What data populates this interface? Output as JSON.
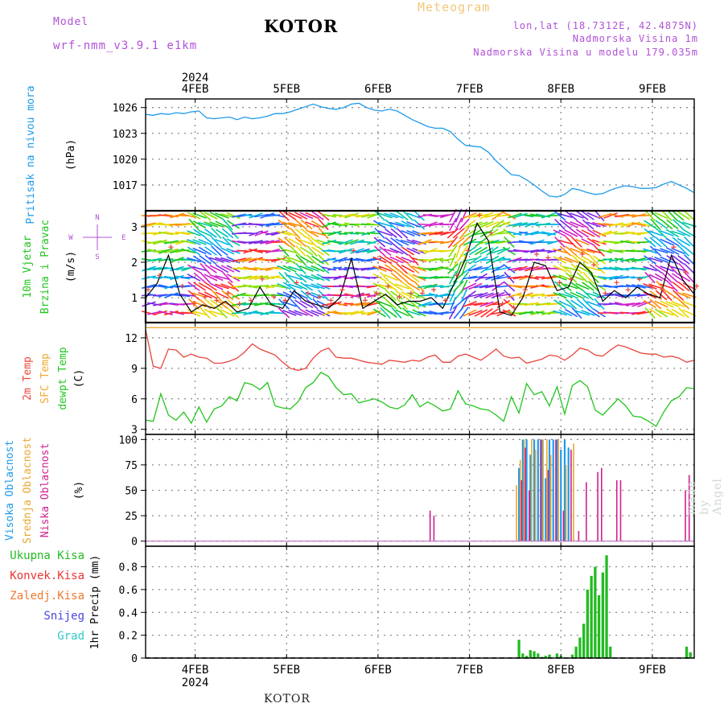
{
  "header": {
    "model_label": "Model",
    "model_name": "wrf-nmm_v3.9.1 e1km",
    "title": "KOTOR",
    "product": "Meteogram",
    "lonlat": "lon,lat (18.7312E, 42.4875N)",
    "elevation": "Nadmorska Visina 1m",
    "model_elevation": "Nadmorska Visina u modelu 179.035m",
    "footer": "KOTOR",
    "credit": "made by Angel"
  },
  "colors": {
    "pressure": "#1e9bea",
    "temp2m": "#e8443a",
    "sfc": "#f0a830",
    "dewpoint": "#22c51e",
    "high_cloud": "#1e9bea",
    "mid_cloud": "#e8a830",
    "low_cloud": "#d02090",
    "precip": "#22bb22",
    "wind_black": "#000000",
    "wind_cross": "#e8443a"
  },
  "chart_data": [
    {
      "type": "line",
      "title": "Pritisak na nivou mora",
      "ylabel": "(hPa)",
      "ylim": [
        1014,
        1027
      ],
      "yticks": [
        1017,
        1020,
        1023,
        1026
      ],
      "top_year_label": "2024",
      "top_day_labels": [
        "4FEB",
        "5FEB",
        "6FEB",
        "7FEB",
        "8FEB",
        "9FEB"
      ],
      "series": [
        {
          "name": "Pritisak na nivou mora",
          "x": [
            0,
            2,
            4,
            6,
            8,
            10,
            12,
            14,
            16,
            18,
            20,
            22,
            24,
            26,
            28,
            30,
            32,
            34,
            36,
            38,
            40,
            42,
            44,
            46,
            48,
            50,
            52,
            54,
            56,
            58,
            60,
            62,
            64,
            66,
            68,
            70,
            72,
            74,
            76,
            78,
            80,
            82,
            84,
            86,
            88,
            90,
            92,
            94,
            96,
            98,
            100,
            102,
            104,
            106,
            108,
            110,
            112,
            114,
            116,
            118,
            120,
            122,
            124,
            126,
            128,
            130,
            132,
            134,
            136,
            138,
            140,
            142,
            144
          ],
          "values": [
            1025.2,
            1025.1,
            1025.3,
            1025.2,
            1025.4,
            1025.3,
            1025.5,
            1025.6,
            1024.8,
            1024.7,
            1024.8,
            1024.9,
            1024.6,
            1024.9,
            1024.7,
            1024.8,
            1025.0,
            1025.3,
            1025.3,
            1025.5,
            1025.8,
            1026.1,
            1026.4,
            1026.1,
            1025.9,
            1025.8,
            1026.0,
            1026.4,
            1026.5,
            1026.0,
            1025.7,
            1025.6,
            1025.8,
            1025.6,
            1025.1,
            1024.6,
            1024.2,
            1023.8,
            1023.6,
            1023.6,
            1023.2,
            1022.3,
            1021.6,
            1021.5,
            1021.4,
            1020.8,
            1019.8,
            1019.0,
            1018.2,
            1018.1,
            1017.6,
            1017.0,
            1016.3,
            1015.7,
            1015.6,
            1015.9,
            1016.6,
            1016.4,
            1016.1,
            1015.9,
            1016.0,
            1016.4,
            1016.7,
            1016.9,
            1016.8,
            1016.6,
            1016.6,
            1016.7,
            1017.1,
            1017.4,
            1017.0,
            1016.6,
            1016.1
          ]
        }
      ]
    },
    {
      "type": "line",
      "title": "10m Vjetar Brzina i Pravac",
      "ylabel": "(m/s)",
      "compass": [
        "N",
        "W",
        "E",
        "S"
      ],
      "ylim": [
        0.3,
        3.45
      ],
      "yticks": [
        1,
        2,
        3
      ],
      "series": [
        {
          "name": "10m Vjetar Brzina i Pravac",
          "x": [
            0,
            3,
            6,
            9,
            12,
            15,
            18,
            21,
            24,
            27,
            30,
            33,
            36,
            39,
            42,
            45,
            48,
            51,
            54,
            57,
            60,
            63,
            66,
            69,
            72,
            75,
            78,
            81,
            84,
            87,
            90,
            93,
            96,
            99,
            102,
            105,
            108,
            111,
            114,
            117,
            120,
            123,
            126,
            129,
            132,
            135,
            138,
            141,
            144
          ],
          "values": [
            1.0,
            1.4,
            2.2,
            1.1,
            0.6,
            0.8,
            0.7,
            0.9,
            0.6,
            0.7,
            1.3,
            0.8,
            0.7,
            1.2,
            0.9,
            0.8,
            0.7,
            1.0,
            2.1,
            0.7,
            0.9,
            1.1,
            0.8,
            0.9,
            0.9,
            1.0,
            0.7,
            1.4,
            2.1,
            3.1,
            2.6,
            0.6,
            0.5,
            1.0,
            2.0,
            1.9,
            1.2,
            1.3,
            2.0,
            1.7,
            0.9,
            1.2,
            1.0,
            1.3,
            1.1,
            1.0,
            2.2,
            1.5,
            1.1
          ]
        }
      ]
    },
    {
      "type": "line",
      "ylabel": "(C)",
      "ylim": [
        2.5,
        13.5
      ],
      "yticks": [
        3,
        6,
        9,
        12
      ],
      "series": [
        {
          "name": "2m Temp",
          "x": [
            0,
            2,
            4,
            6,
            8,
            10,
            12,
            14,
            16,
            18,
            20,
            22,
            24,
            26,
            28,
            30,
            32,
            34,
            36,
            38,
            40,
            42,
            44,
            46,
            48,
            50,
            52,
            54,
            56,
            58,
            60,
            62,
            64,
            66,
            68,
            70,
            72,
            74,
            76,
            78,
            80,
            82,
            84,
            86,
            88,
            90,
            92,
            94,
            96,
            98,
            100,
            102,
            104,
            106,
            108,
            110,
            112,
            114,
            116,
            118,
            120,
            122,
            124,
            126,
            128,
            130,
            132,
            134,
            136,
            138,
            140,
            142,
            144
          ],
          "values": [
            12.8,
            9.2,
            9.0,
            10.9,
            10.8,
            10.1,
            10.4,
            10.1,
            10.0,
            9.5,
            9.5,
            9.7,
            10.0,
            10.6,
            11.4,
            10.9,
            10.6,
            10.3,
            9.6,
            9.0,
            8.8,
            9.0,
            10.0,
            10.7,
            11.0,
            10.1,
            10.0,
            10.0,
            9.8,
            9.6,
            9.5,
            9.4,
            9.8,
            9.7,
            9.6,
            9.8,
            9.7,
            10.1,
            10.3,
            9.6,
            9.6,
            10.2,
            10.4,
            10.1,
            9.8,
            10.3,
            10.9,
            10.2,
            10.0,
            10.1,
            9.5,
            9.7,
            9.9,
            10.3,
            10.2,
            9.8,
            10.3,
            11.0,
            10.8,
            10.3,
            10.2,
            10.8,
            11.3,
            11.1,
            10.8,
            10.5,
            10.4,
            10.4,
            10.1,
            10.2,
            10.0,
            9.6,
            9.8
          ]
        },
        {
          "name": "SFC Temp",
          "x": [
            0,
            144
          ],
          "values": [
            13.0,
            13.0
          ]
        },
        {
          "name": "dewpt Temp",
          "x": [
            0,
            2,
            4,
            6,
            8,
            10,
            12,
            14,
            16,
            18,
            20,
            22,
            24,
            26,
            28,
            30,
            32,
            34,
            36,
            38,
            40,
            42,
            44,
            46,
            48,
            50,
            52,
            54,
            56,
            58,
            60,
            62,
            64,
            66,
            68,
            70,
            72,
            74,
            76,
            78,
            80,
            82,
            84,
            86,
            88,
            90,
            92,
            94,
            96,
            98,
            100,
            102,
            104,
            106,
            108,
            110,
            112,
            114,
            116,
            118,
            120,
            122,
            124,
            126,
            128,
            130,
            132,
            134,
            136,
            138,
            140,
            142,
            144
          ],
          "values": [
            3.9,
            3.8,
            6.5,
            4.4,
            3.9,
            4.7,
            3.6,
            5.2,
            3.7,
            5.0,
            5.3,
            6.2,
            5.8,
            7.6,
            7.4,
            6.9,
            7.6,
            5.3,
            5.1,
            5.0,
            5.7,
            7.1,
            7.6,
            8.6,
            8.2,
            7.1,
            6.4,
            6.5,
            5.6,
            5.8,
            6.0,
            5.7,
            5.2,
            5.0,
            5.4,
            6.4,
            5.2,
            5.7,
            5.3,
            4.8,
            5.0,
            6.8,
            5.5,
            5.3,
            5.0,
            4.9,
            4.4,
            3.8,
            6.2,
            4.6,
            7.5,
            6.4,
            6.7,
            5.3,
            7.2,
            4.5,
            7.3,
            7.8,
            7.2,
            4.9,
            4.4,
            5.2,
            6.0,
            5.3,
            4.3,
            4.2,
            3.8,
            3.3,
            4.7,
            5.8,
            6.2,
            7.1,
            7.0
          ]
        }
      ]
    },
    {
      "type": "bar",
      "ylabel": "(%)",
      "ylim": [
        -5,
        105
      ],
      "yticks": [
        0,
        25,
        50,
        75,
        100
      ],
      "series": [
        {
          "name": "Visoka Oblacnost",
          "x": [
            98,
            99,
            100,
            101,
            102,
            103,
            104,
            105,
            106,
            107,
            108,
            109,
            110,
            111
          ],
          "values": [
            72,
            100,
            100,
            85,
            100,
            100,
            100,
            62,
            100,
            100,
            100,
            90,
            100,
            92
          ]
        },
        {
          "name": "Srednja Oblacnost",
          "x": [
            97,
            98,
            99,
            101,
            102,
            104,
            105,
            106,
            108,
            110,
            112
          ],
          "values": [
            55,
            80,
            100,
            100,
            90,
            100,
            100,
            85,
            100,
            75,
            96
          ]
        },
        {
          "name": "Niska Oblacnost",
          "x": [
            74,
            75,
            98,
            99,
            100,
            103,
            105,
            107,
            109,
            111,
            113,
            115,
            118,
            119,
            123,
            124,
            141,
            142
          ],
          "values": [
            30,
            25,
            60,
            92,
            50,
            100,
            70,
            100,
            30,
            90,
            10,
            58,
            68,
            72,
            60,
            60,
            50,
            65
          ]
        }
      ]
    },
    {
      "type": "bar",
      "ylabel": "1hr Precip (mm)",
      "ylim": [
        0,
        0.98
      ],
      "yticks": [
        0,
        0.2,
        0.4,
        0.6,
        0.8
      ],
      "bottom_day_labels": [
        "4FEB",
        "5FEB",
        "6FEB",
        "7FEB",
        "8FEB",
        "9FEB"
      ],
      "bottom_year_label": "2024",
      "series": [
        {
          "name": "Ukupna Kisa",
          "x": [
            98,
            99,
            100,
            101,
            102,
            103,
            104,
            105,
            106,
            107,
            108,
            109,
            110,
            111,
            112,
            113,
            114,
            115,
            116,
            117,
            118,
            119,
            120,
            121,
            122,
            142,
            143
          ],
          "values": [
            0.16,
            0.04,
            0.02,
            0.07,
            0.06,
            0.04,
            0.01,
            0.02,
            0.03,
            0.0,
            0.04,
            0.02,
            0.0,
            0.0,
            0.03,
            0.1,
            0.18,
            0.3,
            0.6,
            0.72,
            0.8,
            0.55,
            0.75,
            0.9,
            0.1,
            0.1,
            0.05
          ]
        },
        {
          "name": "Konvek.Kisa",
          "x": [],
          "values": []
        },
        {
          "name": "Zaledj.Kisa",
          "x": [],
          "values": []
        },
        {
          "name": "Snijeg",
          "x": [],
          "values": []
        },
        {
          "name": "Grad",
          "x": [],
          "values": []
        }
      ]
    }
  ]
}
